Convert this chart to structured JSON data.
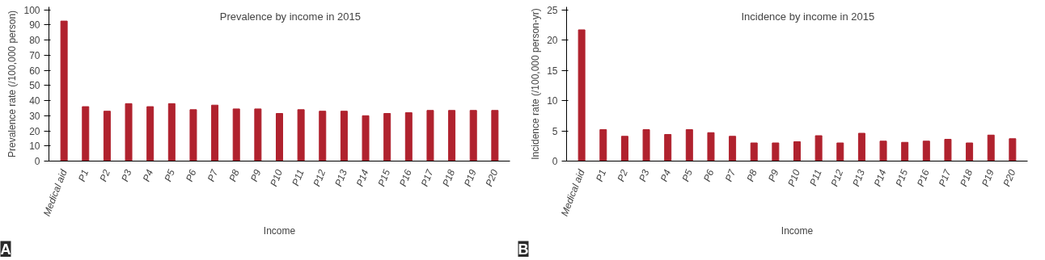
{
  "chart_data": [
    {
      "type": "bar",
      "title": "Prevalence by income in 2015",
      "xlabel": "Income",
      "ylabel": "Prevalence rate (/100,000 person)",
      "annotations": [
        "A"
      ],
      "categories": [
        "Medical aid",
        "P1",
        "P2",
        "P3",
        "P4",
        "P5",
        "P6",
        "P7",
        "P8",
        "P9",
        "P10",
        "P11",
        "P12",
        "P13",
        "P14",
        "P15",
        "P16",
        "P17",
        "P18",
        "P19",
        "P20"
      ],
      "values": [
        92.6,
        36,
        33,
        38,
        36,
        38,
        34,
        37,
        34.5,
        34.5,
        31.5,
        34,
        33,
        33,
        30,
        31.5,
        32,
        33.5,
        33.5,
        33.5,
        33.5
      ],
      "color": "#b0222e",
      "ylim": [
        0,
        102
      ],
      "yticks": [
        0,
        10,
        20,
        30,
        40,
        50,
        60,
        70,
        80,
        90,
        100
      ],
      "grid": false
    },
    {
      "type": "bar",
      "title": "Incidence by income in 2015",
      "xlabel": "Income",
      "ylabel": "Incidence rate (/100,000 person-yr)",
      "annotations": [
        "B"
      ],
      "categories": [
        "Medical aid",
        "P1",
        "P2",
        "P3",
        "P4",
        "P5",
        "P6",
        "P7",
        "P8",
        "P9",
        "P10",
        "P11",
        "P12",
        "P13",
        "P14",
        "P15",
        "P16",
        "P17",
        "P18",
        "P19",
        "P20"
      ],
      "values": [
        21.7,
        5.2,
        4.1,
        5.2,
        4.4,
        5.2,
        4.7,
        4.1,
        3.0,
        3.0,
        3.2,
        4.2,
        3.0,
        4.6,
        3.3,
        3.1,
        3.3,
        3.6,
        3.0,
        4.3,
        3.7
      ],
      "color": "#b0222e",
      "ylim": [
        0,
        25.5
      ],
      "yticks": [
        0,
        5,
        10,
        15,
        20,
        25
      ],
      "grid": false
    }
  ]
}
